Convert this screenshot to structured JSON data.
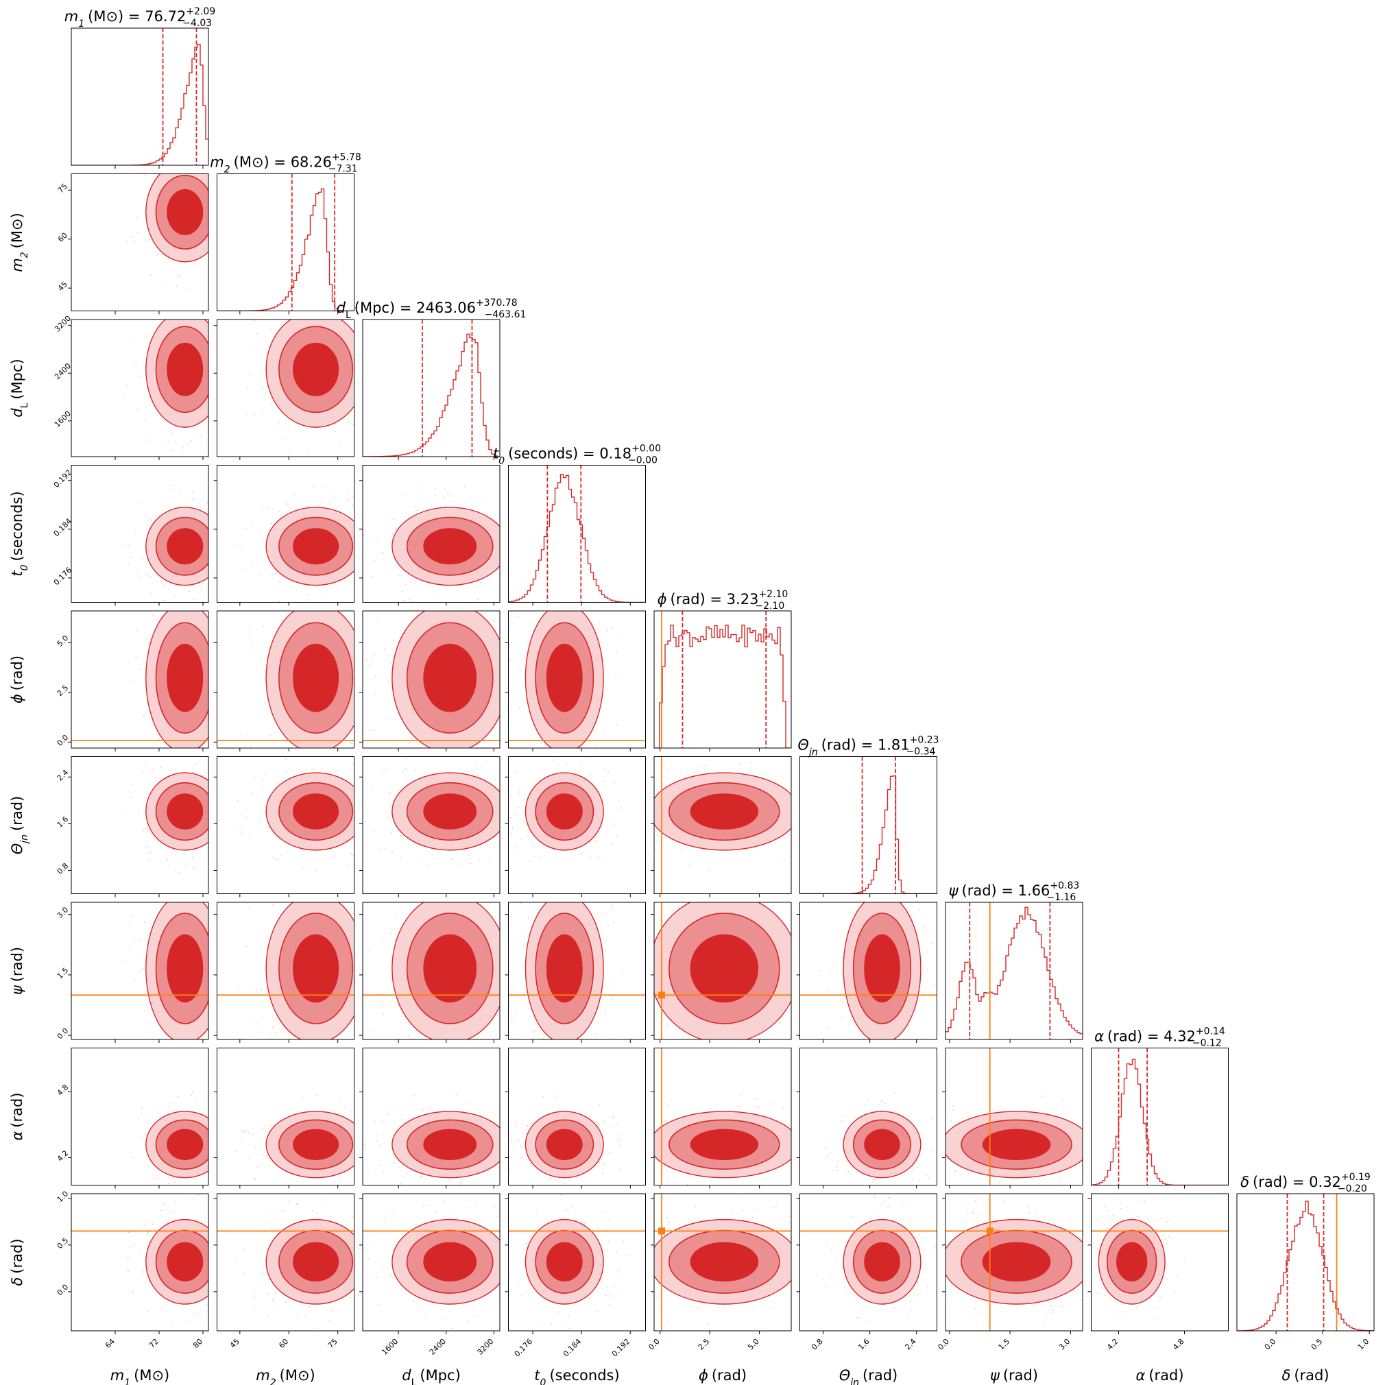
{
  "chart_data": {
    "type": "corner",
    "colors": {
      "posterior": "#d62728",
      "truth": "#ff7f0e",
      "frame": "#000000"
    },
    "grid": false,
    "parameters": [
      {
        "key": "m1",
        "sym": "m",
        "sub": "1",
        "unit": "(M⊙)",
        "range": [
          56,
          81
        ],
        "ticks": [
          64,
          72,
          80
        ],
        "tick_labels": [
          "64",
          "72",
          "80"
        ],
        "title_prefix": " = 76.72",
        "title_plus": "+2.09",
        "title_minus": "−4.03",
        "median": 76.72,
        "q_lo": 72.69,
        "q_hi": 78.81,
        "hist_mode": 79.2,
        "hist_sigma": 3.5,
        "hist_skew": "left"
      },
      {
        "key": "m2",
        "sym": "m",
        "sub": "2",
        "unit": "(M⊙)",
        "range": [
          38,
          80
        ],
        "ticks": [
          45,
          60,
          75
        ],
        "tick_labels": [
          "45",
          "60",
          "75"
        ],
        "title_prefix": " = 68.26",
        "title_plus": "+5.78",
        "title_minus": "−7.31",
        "median": 68.26,
        "q_lo": 60.95,
        "q_hi": 74.04,
        "hist_mode": 70.0,
        "hist_sigma": 6.5,
        "hist_skew": "left"
      },
      {
        "key": "dL",
        "sym": "d",
        "sub": "L",
        "unit": "(Mpc)",
        "range": [
          1000,
          3300
        ],
        "ticks": [
          1600,
          2400,
          3200
        ],
        "tick_labels": [
          "1600",
          "2400",
          "3200"
        ],
        "title_prefix": " = 2463.06",
        "title_plus": "+370.78",
        "title_minus": "−463.61",
        "median": 2463.06,
        "q_lo": 1999.45,
        "q_hi": 2833.84,
        "hist_mode": 2850,
        "hist_sigma": 480,
        "hist_skew": "left"
      },
      {
        "key": "t0",
        "sym": "t",
        "sub": "0",
        "unit": "(seconds)",
        "range": [
          0.172,
          0.1945
        ],
        "ticks": [
          0.176,
          0.184,
          0.192
        ],
        "tick_labels": [
          "0.176",
          "0.184",
          "0.192"
        ],
        "title_prefix": " = 0.18",
        "title_plus": "+0.00",
        "title_minus": "−0.00",
        "median": 0.1812,
        "q_lo": 0.1784,
        "q_hi": 0.1839,
        "hist_mode": 0.1812,
        "hist_sigma": 0.0027,
        "hist_skew": "none"
      },
      {
        "key": "phi",
        "sym": "ϕ",
        "sub": "",
        "unit": "(rad)",
        "range": [
          -0.3,
          6.6
        ],
        "ticks": [
          0.0,
          2.5,
          5.0
        ],
        "tick_labels": [
          "0.0",
          "2.5",
          "5.0"
        ],
        "title_prefix": " = 3.23",
        "title_plus": "+2.10",
        "title_minus": "−2.10",
        "median": 3.23,
        "q_lo": 1.13,
        "q_hi": 5.33,
        "hist_mode": 3.2,
        "hist_sigma": 0,
        "hist_skew": "uniform",
        "truth": 0.08
      },
      {
        "key": "theta",
        "sym": "Θ",
        "sub": "jn",
        "unit": "(rad)",
        "range": [
          0.4,
          2.75
        ],
        "ticks": [
          0.8,
          1.6,
          2.4
        ],
        "tick_labels": [
          "0.8",
          "1.6",
          "2.4"
        ],
        "title_prefix": " = 1.81",
        "title_plus": "+0.23",
        "title_minus": "−0.34",
        "median": 1.81,
        "q_lo": 1.47,
        "q_hi": 2.04,
        "hist_mode": 2.0,
        "hist_sigma": 0.22,
        "hist_skew": "left"
      },
      {
        "key": "psi",
        "sym": "ψ",
        "sub": "",
        "unit": "(rad)",
        "range": [
          -0.1,
          3.3
        ],
        "ticks": [
          0.0,
          1.5,
          3.0
        ],
        "tick_labels": [
          "0.0",
          "1.5",
          "3.0"
        ],
        "title_prefix": " = 1.66",
        "title_plus": "+0.83",
        "title_minus": "−1.16",
        "median": 1.66,
        "q_lo": 0.5,
        "q_hi": 2.49,
        "hist_mode": 1.9,
        "hist_sigma": 0.5,
        "hist_skew": "bimodal",
        "truth": 1.0
      },
      {
        "key": "alpha",
        "sym": "α",
        "sub": "",
        "unit": "(rad)",
        "range": [
          3.95,
          5.2
        ],
        "ticks": [
          4.2,
          4.8
        ],
        "tick_labels": [
          "4.2",
          "4.8"
        ],
        "title_prefix": " = 4.32",
        "title_plus": "+0.14",
        "title_minus": "−0.12",
        "median": 4.32,
        "q_lo": 4.2,
        "q_hi": 4.46,
        "hist_mode": 4.32,
        "hist_sigma": 0.1,
        "hist_skew": "none"
      },
      {
        "key": "delta",
        "sym": "δ",
        "sub": "",
        "unit": "(rad)",
        "range": [
          -0.42,
          1.05
        ],
        "ticks": [
          0.0,
          0.5,
          1.0
        ],
        "tick_labels": [
          "0.0",
          "0.5",
          "1.0"
        ],
        "title_prefix": " = 0.32",
        "title_plus": "+0.19",
        "title_minus": "−0.20",
        "median": 0.32,
        "q_lo": 0.12,
        "q_hi": 0.51,
        "hist_mode": 0.32,
        "hist_sigma": 0.18,
        "hist_skew": "none",
        "truth": 0.65
      }
    ]
  }
}
